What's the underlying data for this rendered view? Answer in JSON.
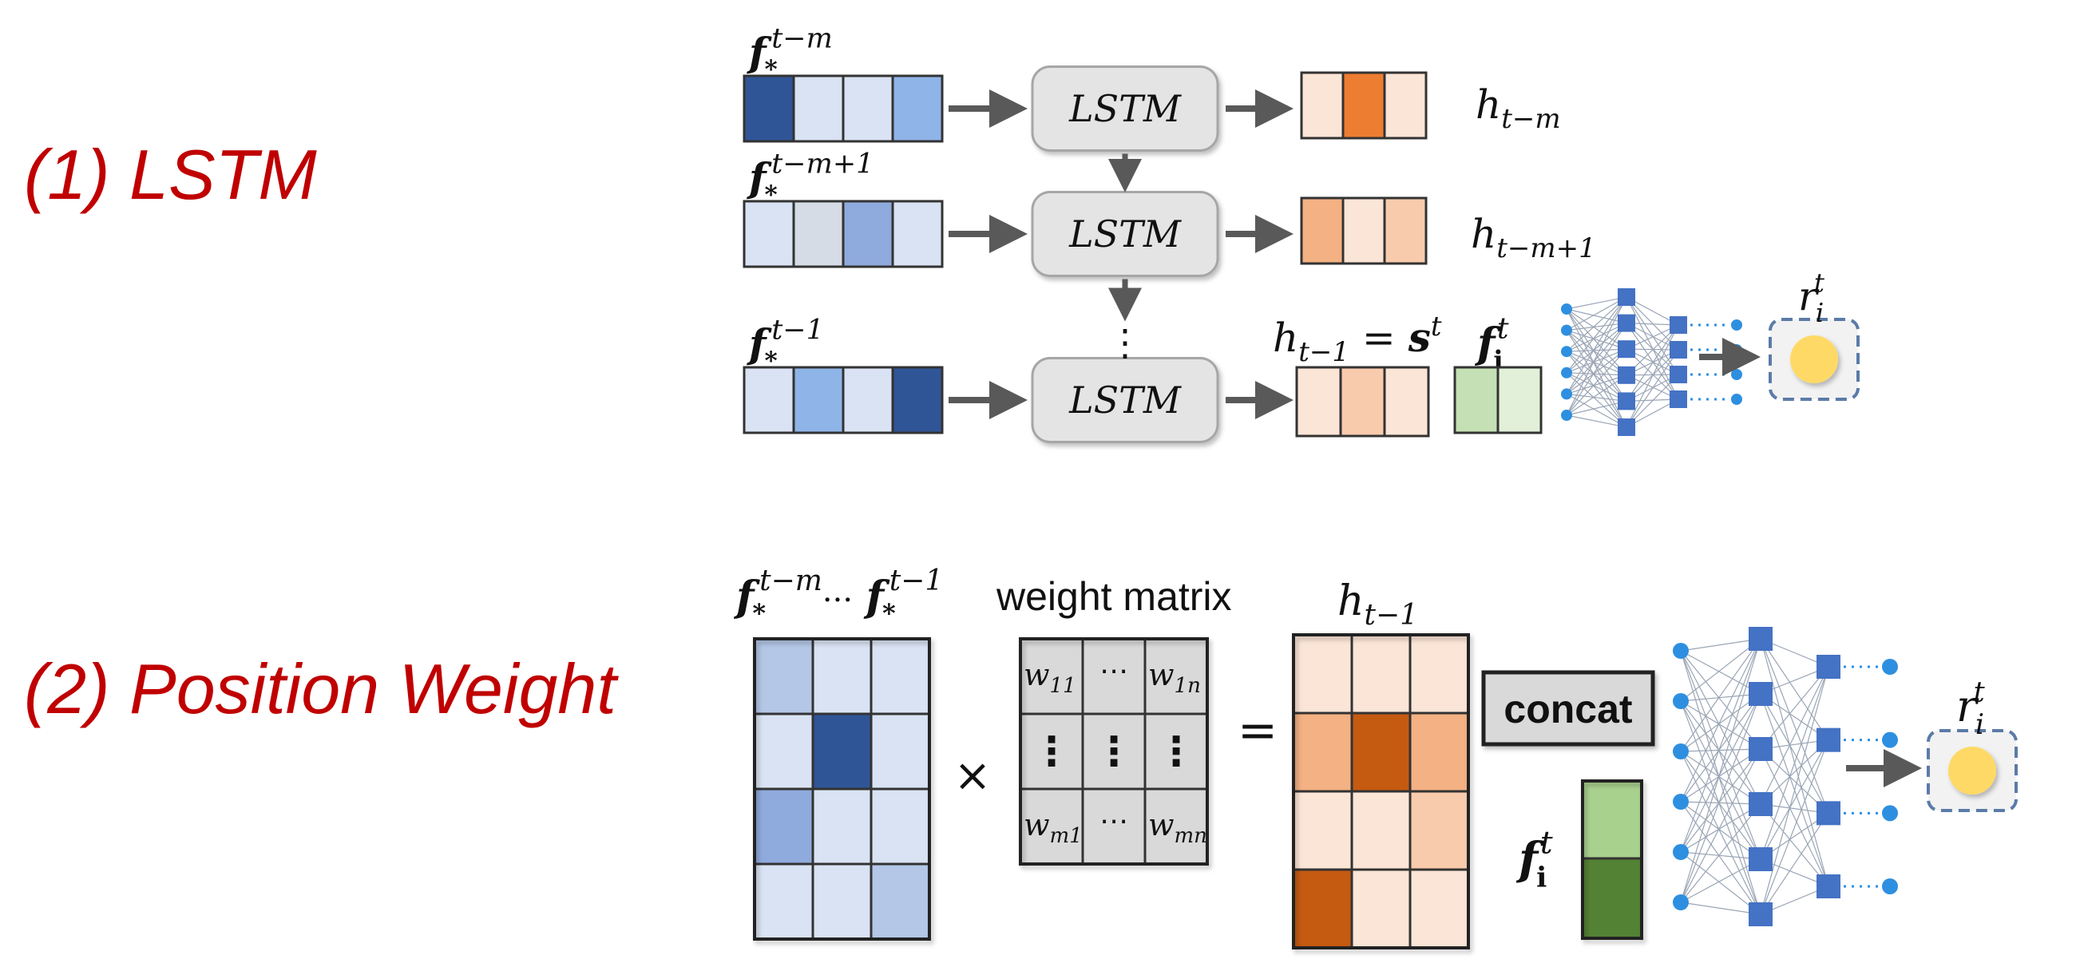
{
  "sections": {
    "lstm_title": "(1) LSTM",
    "position_title": "(2) Position Weight"
  },
  "lstm": {
    "block_label": "LSTM",
    "vdots": "⋮",
    "inputs": [
      {
        "base": "f",
        "sub": "*",
        "sup": "t−m",
        "colors": [
          "#2f5597",
          "#dae3f3",
          "#dae3f3",
          "#8fb4e8"
        ]
      },
      {
        "base": "f",
        "sub": "*",
        "sup": "t−m+1",
        "colors": [
          "#dae3f3",
          "#d6dce5",
          "#8faadc",
          "#dae3f3"
        ]
      },
      {
        "base": "f",
        "sub": "*",
        "sup": "t−1",
        "colors": [
          "#dae3f3",
          "#8fb4e8",
          "#dae3f3",
          "#2f5597"
        ]
      }
    ],
    "outputs": [
      {
        "label_base": "h",
        "label_sub": "t−m",
        "colors": [
          "#fbe5d6",
          "#ed7d31",
          "#fbe5d6"
        ]
      },
      {
        "label_base": "h",
        "label_sub": "t−m+1",
        "colors": [
          "#f4b183",
          "#fbe5d6",
          "#f8cbad"
        ]
      },
      {
        "label_base": "h",
        "label_sub": "t−1",
        "label_eq": " = ",
        "label_s": "s",
        "label_s_sup": "t",
        "colors": [
          "#fbe5d6",
          "#f8cbad",
          "#fbe5d6"
        ]
      }
    ],
    "fi": {
      "base": "f",
      "sub": "i",
      "sup": "t",
      "colors": [
        "#c5e0b4",
        "#e2f0d9"
      ]
    },
    "result": {
      "base": "r",
      "sub": "i",
      "sup": "t"
    }
  },
  "position": {
    "input_label": {
      "base": "f",
      "sub": "*",
      "sup1": "t−m",
      "dots": "···",
      "sup2": "t−1"
    },
    "input_matrix": [
      [
        "#b4c7e7",
        "#dae3f3",
        "#dae3f3"
      ],
      [
        "#dae3f3",
        "#2f5597",
        "#dae3f3"
      ],
      [
        "#8faadc",
        "#dae3f3",
        "#dae3f3"
      ],
      [
        "#dae3f3",
        "#dae3f3",
        "#b4c7e7"
      ]
    ],
    "times": "×",
    "equals": "=",
    "weight_title": "weight matrix",
    "weight_cells": [
      [
        {
          "b": "w",
          "s": "11"
        },
        {
          "t": "⋯"
        },
        {
          "b": "w",
          "s": "1n"
        }
      ],
      [
        {
          "t": "⋮"
        },
        {
          "t": "⋮"
        },
        {
          "t": "⋮"
        }
      ],
      [
        {
          "b": "w",
          "s": "m1"
        },
        {
          "t": "⋯"
        },
        {
          "b": "w",
          "s": "mn"
        }
      ]
    ],
    "output_label": {
      "base": "h",
      "sub": "t−1"
    },
    "output_matrix": [
      [
        "#fbe5d6",
        "#fbe5d6",
        "#fbe5d6"
      ],
      [
        "#f4b183",
        "#c55a11",
        "#f4b183"
      ],
      [
        "#fbe5d6",
        "#fbe5d6",
        "#f8cbad"
      ],
      [
        "#c55a11",
        "#fbe5d6",
        "#fbe5d6"
      ]
    ],
    "concat_label": "concat",
    "fi": {
      "base": "f",
      "sub": "i",
      "sup": "t",
      "colors": [
        "#a9d18e",
        "#548235"
      ]
    },
    "result": {
      "base": "r",
      "sub": "i",
      "sup": "t"
    }
  },
  "colors": {
    "title_red": "#c00000",
    "lstm_fill": "#e4e4e4",
    "arrow": "#595959",
    "nn_node": "#4472c4",
    "nn_dot": "#2e8fe0",
    "result_fill": "#ffd966",
    "result_border": "#5b7ba8"
  }
}
